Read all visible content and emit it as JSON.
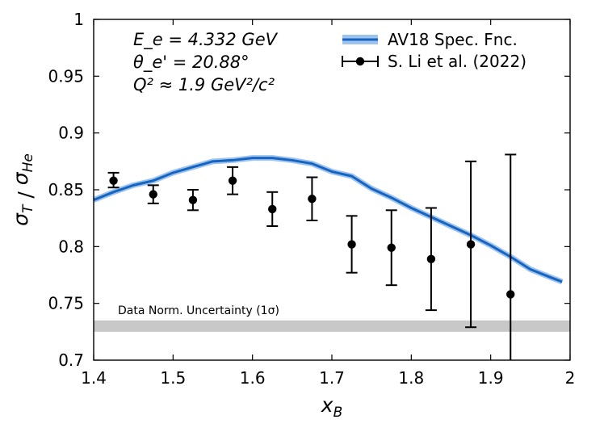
{
  "chart_data": {
    "type": "scatter",
    "xlabel": "x_B",
    "ylabel": "σ_T / σ_He",
    "xlim": [
      1.4,
      2.0
    ],
    "ylim": [
      0.7,
      1.0
    ],
    "x_ticks": [
      1.4,
      1.5,
      1.6,
      1.7,
      1.8,
      1.9,
      2.0
    ],
    "x_tick_labels": [
      "1.4",
      "1.5",
      "1.6",
      "1.7",
      "1.8",
      "1.9",
      "2"
    ],
    "y_ticks": [
      0.7,
      0.75,
      0.8,
      0.85,
      0.9,
      0.95,
      1.0
    ],
    "y_tick_labels": [
      "0.7",
      "0.75",
      "0.8",
      "0.85",
      "0.9",
      "0.95",
      "1"
    ],
    "grid": false,
    "legend_position": "top-right",
    "annotations": {
      "beam_energy": "E_e = 4.332 GeV",
      "angle": "θ_e' = 20.88°",
      "q2": "Q² ≈ 1.9 GeV²/c²",
      "band_label": "Data Norm. Uncertainty (1σ)"
    },
    "colors": {
      "model": "#1565c0",
      "model_band": "#9ec3ee",
      "data": "#000000",
      "norm_band": "#c8c8c8"
    },
    "norm_band": {
      "y_low": 0.725,
      "y_high": 0.735
    },
    "series": [
      {
        "name": "AV18 Spec. Fnc.",
        "kind": "line",
        "x": [
          1.4,
          1.425,
          1.45,
          1.475,
          1.5,
          1.525,
          1.55,
          1.575,
          1.6,
          1.625,
          1.65,
          1.675,
          1.7,
          1.725,
          1.75,
          1.775,
          1.8,
          1.825,
          1.85,
          1.875,
          1.9,
          1.925,
          1.95,
          1.975,
          1.99
        ],
        "y": [
          0.841,
          0.848,
          0.854,
          0.858,
          0.865,
          0.87,
          0.875,
          0.876,
          0.878,
          0.878,
          0.876,
          0.873,
          0.866,
          0.862,
          0.851,
          0.843,
          0.834,
          0.826,
          0.818,
          0.81,
          0.801,
          0.791,
          0.78,
          0.773,
          0.769
        ]
      },
      {
        "name": "S. Li et al. (2022)",
        "kind": "errorbar",
        "x": [
          1.425,
          1.475,
          1.525,
          1.575,
          1.625,
          1.675,
          1.725,
          1.775,
          1.825,
          1.875,
          1.925
        ],
        "y": [
          0.858,
          0.846,
          0.841,
          0.858,
          0.833,
          0.842,
          0.802,
          0.799,
          0.789,
          0.802,
          0.758
        ],
        "y_err_low": [
          0.006,
          0.008,
          0.009,
          0.012,
          0.015,
          0.019,
          0.025,
          0.033,
          0.045,
          0.073,
          0.06
        ],
        "y_err_high": [
          0.007,
          0.008,
          0.009,
          0.012,
          0.015,
          0.019,
          0.025,
          0.033,
          0.045,
          0.073,
          0.123
        ]
      }
    ]
  }
}
